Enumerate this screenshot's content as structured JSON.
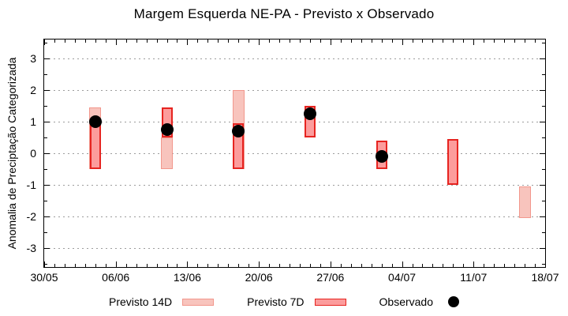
{
  "chart_data": {
    "type": "bar",
    "title": "Margem Esquerda NE-PA - Previsto x Observado",
    "ylabel": "Anomalia de Preciptação Categorizada",
    "xlabel": "",
    "ylim": [
      -3.6,
      3.6
    ],
    "xlim_days": [
      0,
      49
    ],
    "grid": "horizontal dotted at integer y values",
    "legend_position": "bottom",
    "x_tick_labels": [
      "30/05",
      "06/06",
      "13/06",
      "20/06",
      "27/06",
      "04/07",
      "11/07",
      "18/07"
    ],
    "x_tick_days": [
      0,
      7,
      14,
      21,
      28,
      35,
      42,
      49
    ],
    "y_ticks": [
      3,
      2,
      1,
      0,
      -1,
      -2,
      -3
    ],
    "categories": [
      "04/06",
      "11/06",
      "18/06",
      "25/06",
      "02/07",
      "09/07",
      "16/07"
    ],
    "bar_days": [
      5,
      12,
      19,
      26,
      33,
      40,
      47
    ],
    "series": [
      {
        "name": "Previsto 14D",
        "kind": "range-bar",
        "ranges": [
          [
            -0.5,
            1.45
          ],
          [
            -0.5,
            0.5
          ],
          [
            -0.5,
            2.0
          ],
          null,
          null,
          null,
          [
            -2.05,
            -1.05
          ]
        ]
      },
      {
        "name": "Previsto 7D",
        "kind": "range-bar",
        "ranges": [
          [
            -0.5,
            1.05
          ],
          [
            0.5,
            1.45
          ],
          [
            -0.5,
            0.95
          ],
          [
            0.5,
            1.5
          ],
          [
            -0.5,
            0.4
          ],
          [
            -1.0,
            0.45
          ],
          null
        ]
      },
      {
        "name": "Observado",
        "kind": "point",
        "values": [
          1.0,
          0.75,
          0.7,
          1.25,
          -0.1,
          null,
          null
        ]
      }
    ]
  },
  "legend": {
    "items": [
      {
        "label": "Previsto 14D"
      },
      {
        "label": "Previsto 7D"
      },
      {
        "label": "Observado"
      }
    ]
  },
  "colors": {
    "previsto14_fill": "#f8c4bd",
    "previsto14_border": "#f2978c",
    "previsto7_fill": "#fc9c9c",
    "previsto7_border": "#e62420",
    "observado_dot": "#000000",
    "grid": "#9c9c9c"
  }
}
